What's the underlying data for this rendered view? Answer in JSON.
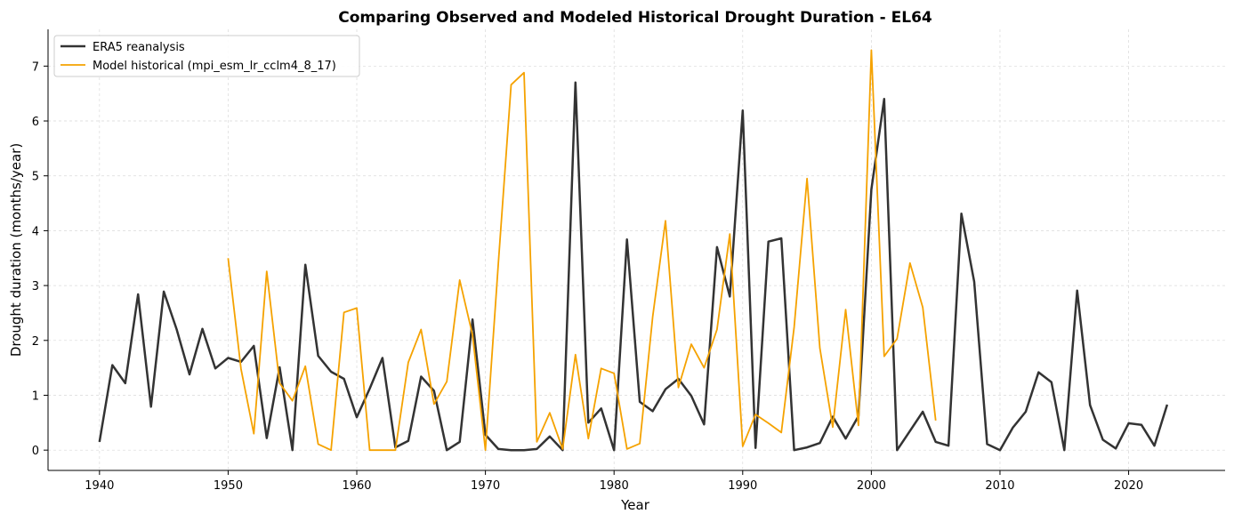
{
  "chart_data": {
    "type": "line",
    "title": "Comparing Observed and Modeled Historical Drought Duration - EL64",
    "xlabel": "Year",
    "ylabel": "Drought duration (months/year)",
    "xlim": [
      1936,
      2027.5
    ],
    "ylim": [
      -0.37,
      7.67
    ],
    "xticks": [
      1940,
      1950,
      1960,
      1970,
      1980,
      1990,
      2000,
      2010,
      2020
    ],
    "yticks": [
      0,
      1,
      2,
      3,
      4,
      5,
      6,
      7
    ],
    "grid": true,
    "legend_position": "top-left",
    "series": [
      {
        "name": "ERA5 reanalysis",
        "color": "#333333",
        "x": [
          1940,
          1941,
          1942,
          1943,
          1944,
          1945,
          1946,
          1947,
          1948,
          1949,
          1950,
          1951,
          1952,
          1953,
          1954,
          1955,
          1956,
          1957,
          1958,
          1959,
          1960,
          1961,
          1962,
          1963,
          1964,
          1965,
          1966,
          1967,
          1968,
          1969,
          1970,
          1971,
          1972,
          1973,
          1974,
          1975,
          1976,
          1977,
          1978,
          1979,
          1980,
          1981,
          1982,
          1983,
          1984,
          1985,
          1986,
          1987,
          1988,
          1989,
          1990,
          1991,
          1992,
          1993,
          1994,
          1995,
          1996,
          1997,
          1998,
          1999,
          2000,
          2001,
          2002,
          2003,
          2004,
          2005,
          2006,
          2007,
          2008,
          2009,
          2010,
          2011,
          2012,
          2013,
          2014,
          2015,
          2016,
          2017,
          2018,
          2019,
          2020,
          2021,
          2022,
          2023
        ],
        "y": [
          0.15,
          1.55,
          1.22,
          2.84,
          0.79,
          2.89,
          2.2,
          1.38,
          2.21,
          1.49,
          1.68,
          1.61,
          1.9,
          0.22,
          1.51,
          0.0,
          3.38,
          1.72,
          1.43,
          1.3,
          0.6,
          1.12,
          1.68,
          0.05,
          0.17,
          1.34,
          1.08,
          0.0,
          0.15,
          2.38,
          0.28,
          0.02,
          0.0,
          0.0,
          0.02,
          0.25,
          0.0,
          6.7,
          0.5,
          0.76,
          0.0,
          3.84,
          0.88,
          0.71,
          1.11,
          1.3,
          0.99,
          0.47,
          3.7,
          2.8,
          6.19,
          0.04,
          3.8,
          3.86,
          0.0,
          0.05,
          0.13,
          0.61,
          0.21,
          0.62,
          4.75,
          6.4,
          0.0,
          0.35,
          0.7,
          0.15,
          0.08,
          4.31,
          3.07,
          0.11,
          0.0,
          0.41,
          0.7,
          1.42,
          1.24,
          0.0,
          2.91,
          0.82,
          0.19,
          0.03,
          0.49,
          0.46,
          0.08,
          0.83
        ]
      },
      {
        "name": "Model historical (mpi_esm_lr_cclm4_8_17)",
        "color": "#f5a200",
        "x": [
          1950,
          1951,
          1952,
          1953,
          1954,
          1955,
          1956,
          1957,
          1958,
          1959,
          1960,
          1961,
          1962,
          1963,
          1964,
          1965,
          1966,
          1967,
          1968,
          1969,
          1970,
          1971,
          1972,
          1973,
          1974,
          1975,
          1976,
          1977,
          1978,
          1979,
          1980,
          1981,
          1982,
          1983,
          1984,
          1985,
          1986,
          1987,
          1988,
          1989,
          1990,
          1991,
          1992,
          1993,
          1994,
          1995,
          1996,
          1997,
          1998,
          1999,
          2000,
          2001,
          2002,
          2003,
          2004,
          2005
        ],
        "y": [
          3.5,
          1.48,
          0.3,
          3.26,
          1.22,
          0.9,
          1.53,
          0.11,
          0.0,
          2.51,
          2.59,
          0.0,
          0.0,
          0.0,
          1.6,
          2.2,
          0.84,
          1.25,
          3.1,
          2.1,
          0.0,
          3.4,
          6.66,
          6.88,
          0.15,
          0.68,
          0.02,
          1.74,
          0.21,
          1.49,
          1.4,
          0.02,
          0.12,
          2.43,
          4.18,
          1.14,
          1.93,
          1.5,
          2.2,
          3.94,
          0.07,
          0.65,
          0.49,
          0.32,
          2.24,
          4.95,
          1.86,
          0.42,
          2.56,
          0.45,
          7.29,
          1.71,
          2.03,
          3.41,
          2.6,
          0.54
        ]
      }
    ]
  }
}
